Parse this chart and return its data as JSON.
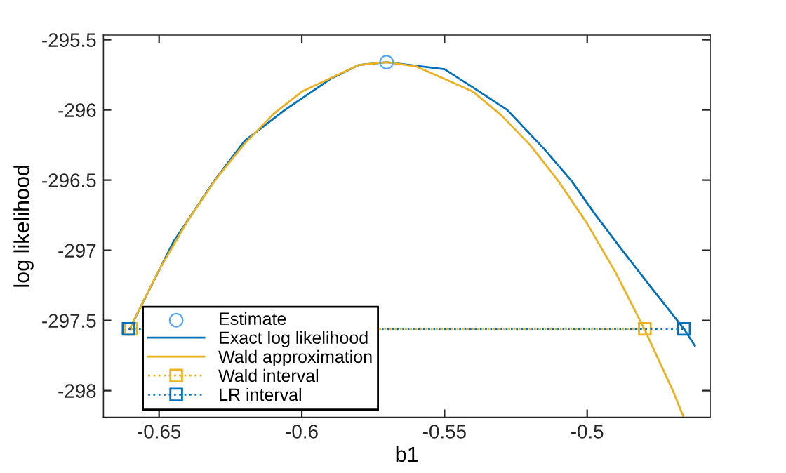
{
  "chart_data": {
    "type": "line",
    "xlabel": "b1",
    "ylabel": "log likelihood",
    "xlim": [
      -0.6695,
      -0.4569
    ],
    "ylim": [
      -298.19,
      -295.467
    ],
    "xticks": [
      -0.65,
      -0.6,
      -0.55,
      -0.5
    ],
    "yticks": [
      -298,
      -297.5,
      -297,
      -296.5,
      -296,
      -295.5
    ],
    "grid": false,
    "legend": "bottom left",
    "series": [
      {
        "name": "Estimate",
        "type": "scatter",
        "marker": "circle",
        "color": "#4da6ff",
        "x": [
          -0.5703
        ],
        "values": [
          -295.66
        ]
      },
      {
        "name": "Exact log likelihood",
        "color": "#0072bd",
        "x": [
          -0.6603,
          -0.645,
          -0.6305,
          -0.62,
          -0.6059,
          -0.59,
          -0.58,
          -0.5703,
          -0.55,
          -0.54,
          -0.528,
          -0.515,
          -0.5057,
          -0.497,
          -0.4877,
          -0.477,
          -0.4661,
          -0.4623
        ],
        "values": [
          -297.56,
          -296.94,
          -296.5,
          -296.22,
          -296.0,
          -295.78,
          -295.68,
          -295.66,
          -295.71,
          -295.84,
          -296.0,
          -296.28,
          -296.5,
          -296.75,
          -297.0,
          -297.28,
          -297.56,
          -297.68
        ]
      },
      {
        "name": "Wald approximation",
        "color": "#edb120",
        "x": [
          -0.6603,
          -0.65,
          -0.64,
          -0.63,
          -0.62,
          -0.61,
          -0.6,
          -0.58,
          -0.5703,
          -0.56,
          -0.54,
          -0.53,
          -0.52,
          -0.51,
          -0.5,
          -0.49,
          -0.48,
          -0.47,
          -0.4664
        ],
        "values": [
          -297.56,
          -297.14,
          -296.79,
          -296.49,
          -296.24,
          -296.03,
          -295.87,
          -295.68,
          -295.66,
          -295.69,
          -295.87,
          -296.04,
          -296.25,
          -296.51,
          -296.81,
          -297.16,
          -297.56,
          -298.0,
          -298.18
        ]
      },
      {
        "name": "Wald interval",
        "type": "line",
        "marker": "square",
        "line_style": "dotted",
        "color": "#edb120",
        "x": [
          -0.6598,
          -0.4798
        ],
        "values": [
          -297.56,
          -297.56
        ]
      },
      {
        "name": "LR interval",
        "type": "line",
        "marker": "square",
        "line_style": "dotted",
        "color": "#0072bd",
        "x": [
          -0.6607,
          -0.4661
        ],
        "values": [
          -297.56,
          -297.56
        ]
      }
    ]
  }
}
